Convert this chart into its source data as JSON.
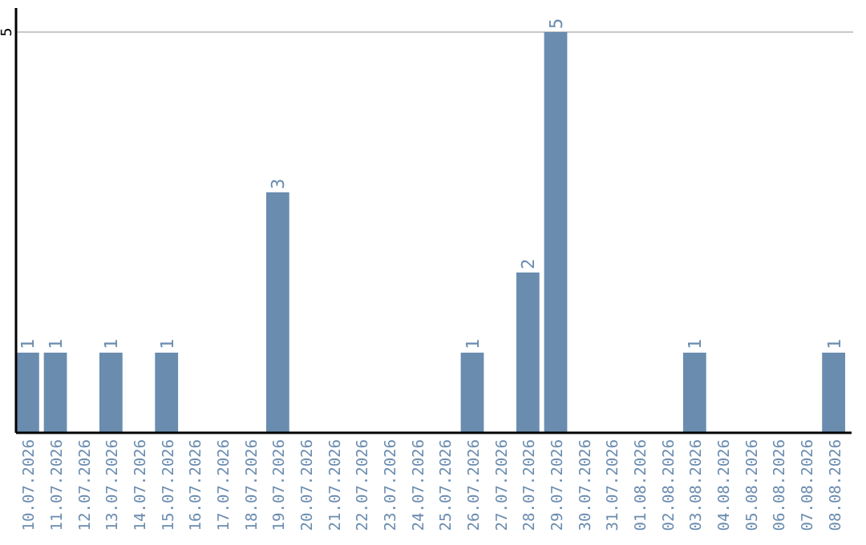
{
  "chart_data": {
    "type": "bar",
    "categories": [
      "10.07.2026",
      "11.07.2026",
      "12.07.2026",
      "13.07.2026",
      "14.07.2026",
      "15.07.2026",
      "16.07.2026",
      "17.07.2026",
      "18.07.2026",
      "19.07.2026",
      "20.07.2026",
      "21.07.2026",
      "22.07.2026",
      "23.07.2026",
      "24.07.2026",
      "25.07.2026",
      "26.07.2026",
      "27.07.2026",
      "28.07.2026",
      "29.07.2026",
      "30.07.2026",
      "31.07.2026",
      "01.08.2026",
      "02.08.2026",
      "03.08.2026",
      "04.08.2026",
      "05.08.2026",
      "06.08.2026",
      "07.08.2026",
      "08.08.2026"
    ],
    "values": [
      1,
      1,
      0,
      1,
      0,
      1,
      0,
      0,
      0,
      3,
      0,
      0,
      0,
      0,
      0,
      0,
      1,
      0,
      2,
      5,
      0,
      0,
      0,
      0,
      1,
      0,
      0,
      0,
      0,
      1
    ],
    "value_labels": [
      "1",
      "1",
      null,
      "1",
      null,
      "1",
      null,
      null,
      null,
      "3",
      null,
      null,
      null,
      null,
      null,
      null,
      "1",
      null,
      "2",
      "5",
      null,
      null,
      null,
      null,
      "1",
      null,
      null,
      null,
      null,
      "1"
    ],
    "color": "#6a8caf",
    "ylim": [
      0,
      5.3
    ],
    "yticks": [
      5
    ],
    "grid": "y"
  }
}
